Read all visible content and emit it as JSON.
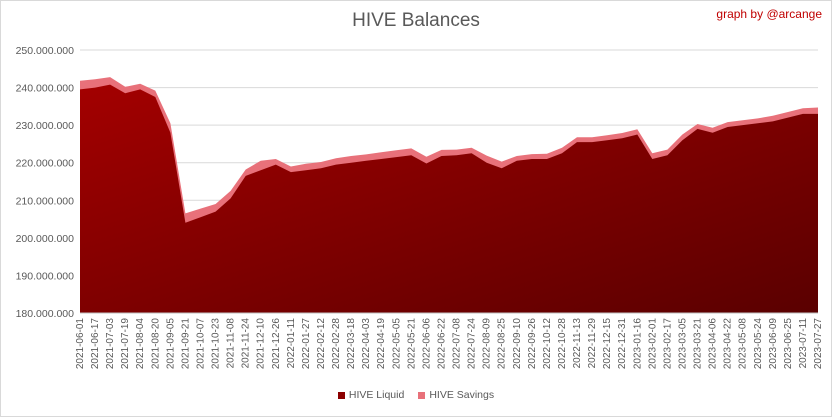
{
  "chart_data": {
    "type": "area",
    "title": "HIVE Balances",
    "credit": "graph by @arcange",
    "ylim": [
      180000000,
      250000000
    ],
    "yticks": [
      "180.000.000",
      "190.000.000",
      "200.000.000",
      "210.000.000",
      "220.000.000",
      "230.000.000",
      "240.000.000",
      "250.000.000"
    ],
    "ytick_values": [
      180000000,
      190000000,
      200000000,
      210000000,
      220000000,
      230000000,
      240000000,
      250000000
    ],
    "xticks": [
      "2021-06-01",
      "2021-06-17",
      "2021-07-03",
      "2021-07-19",
      "2021-08-04",
      "2021-08-20",
      "2021-09-05",
      "2021-09-21",
      "2021-10-07",
      "2021-10-23",
      "2021-11-08",
      "2021-11-24",
      "2021-12-10",
      "2021-12-26",
      "2022-01-11",
      "2022-01-27",
      "2022-02-12",
      "2022-02-28",
      "2022-03-18",
      "2022-04-03",
      "2022-04-19",
      "2022-05-05",
      "2022-05-21",
      "2022-06-06",
      "2022-06-22",
      "2022-07-08",
      "2022-07-24",
      "2022-08-09",
      "2022-08-25",
      "2022-09-10",
      "2022-09-26",
      "2022-10-12",
      "2022-10-28",
      "2022-11-13",
      "2022-11-29",
      "2022-12-15",
      "2022-12-31",
      "2023-01-16",
      "2023-02-01",
      "2023-02-17",
      "2023-03-05",
      "2023-03-21",
      "2023-04-06",
      "2023-04-22",
      "2023-05-08",
      "2023-05-24",
      "2023-06-09",
      "2023-06-25",
      "2023-07-11",
      "2023-07-27"
    ],
    "grid": true,
    "legend_position": "bottom",
    "series": [
      {
        "name": "HIVE Liquid",
        "color": "#8b0000",
        "values": [
          239500000,
          240000000,
          240800000,
          238500000,
          239500000,
          237500000,
          228000000,
          204000000,
          205500000,
          207000000,
          210500000,
          216500000,
          218000000,
          219500000,
          217500000,
          218000000,
          218500000,
          219500000,
          220000000,
          220500000,
          221000000,
          221500000,
          222000000,
          219800000,
          221800000,
          222000000,
          222500000,
          220000000,
          218500000,
          220500000,
          221000000,
          221000000,
          222500000,
          225500000,
          225500000,
          226000000,
          226500000,
          227500000,
          221000000,
          222000000,
          226000000,
          229000000,
          228000000,
          229500000,
          230000000,
          230500000,
          231000000,
          232000000,
          233000000,
          233000000
        ]
      },
      {
        "name": "HIVE Savings",
        "color": "#e8717a",
        "values": [
          241800000,
          242200000,
          242800000,
          240200000,
          241000000,
          239200000,
          230500000,
          206500000,
          207800000,
          209000000,
          212500000,
          218200000,
          220500000,
          221000000,
          219000000,
          219700000,
          220200000,
          221200000,
          221800000,
          222200000,
          222800000,
          223300000,
          223800000,
          221600000,
          223400000,
          223500000,
          224000000,
          221900000,
          220300000,
          221800000,
          222300000,
          222400000,
          224000000,
          226800000,
          226800000,
          227300000,
          227900000,
          228900000,
          222500000,
          223500000,
          227500000,
          230300000,
          229300000,
          230800000,
          231300000,
          231800000,
          232500000,
          233500000,
          234500000,
          234700000
        ]
      }
    ]
  }
}
